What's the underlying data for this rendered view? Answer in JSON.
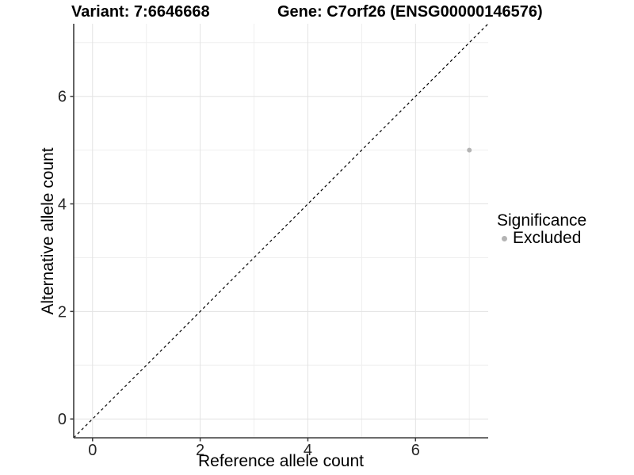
{
  "title": {
    "variant_label": "Variant: 7:6646668",
    "gene_label": "Gene: C7orf26 (ENSG00000146576)"
  },
  "axes": {
    "x_label": "Reference allele count",
    "y_label": "Alternative allele count",
    "x_ticks": [
      "0",
      "2",
      "4",
      "6"
    ],
    "y_ticks": [
      "0",
      "2",
      "4",
      "6"
    ]
  },
  "legend": {
    "title": "Significance",
    "items": [
      {
        "label": "Excluded",
        "color": "#b4b4b4"
      }
    ]
  },
  "chart_data": {
    "type": "scatter",
    "title": "Variant: 7:6646668    Gene: C7orf26 (ENSG00000146576)",
    "xlabel": "Reference allele count",
    "ylabel": "Alternative allele count",
    "xlim": [
      -0.35,
      7.35
    ],
    "ylim": [
      -0.35,
      7.35
    ],
    "x_major_ticks": [
      0,
      2,
      4,
      6
    ],
    "y_major_ticks": [
      0,
      2,
      4,
      6
    ],
    "x_minor_gridlines": [
      1,
      3,
      5,
      7
    ],
    "y_minor_gridlines": [
      1,
      3,
      5,
      7
    ],
    "grid": true,
    "legend_position": "right",
    "series": [
      {
        "name": "Excluded",
        "color": "#b4b4b4",
        "points": [
          {
            "x": 7,
            "y": 5
          }
        ]
      }
    ],
    "reference_line": {
      "type": "identity",
      "equation": "y = x",
      "style": "dashed",
      "color": "#000000"
    }
  },
  "colors": {
    "background": "#ffffff",
    "grid_major": "#e3e3e3",
    "grid_minor": "#efefef",
    "axis_line": "#3c3c3c",
    "tick_label": "#262626",
    "point": "#b4b4b4",
    "dashed_line": "#000000"
  }
}
